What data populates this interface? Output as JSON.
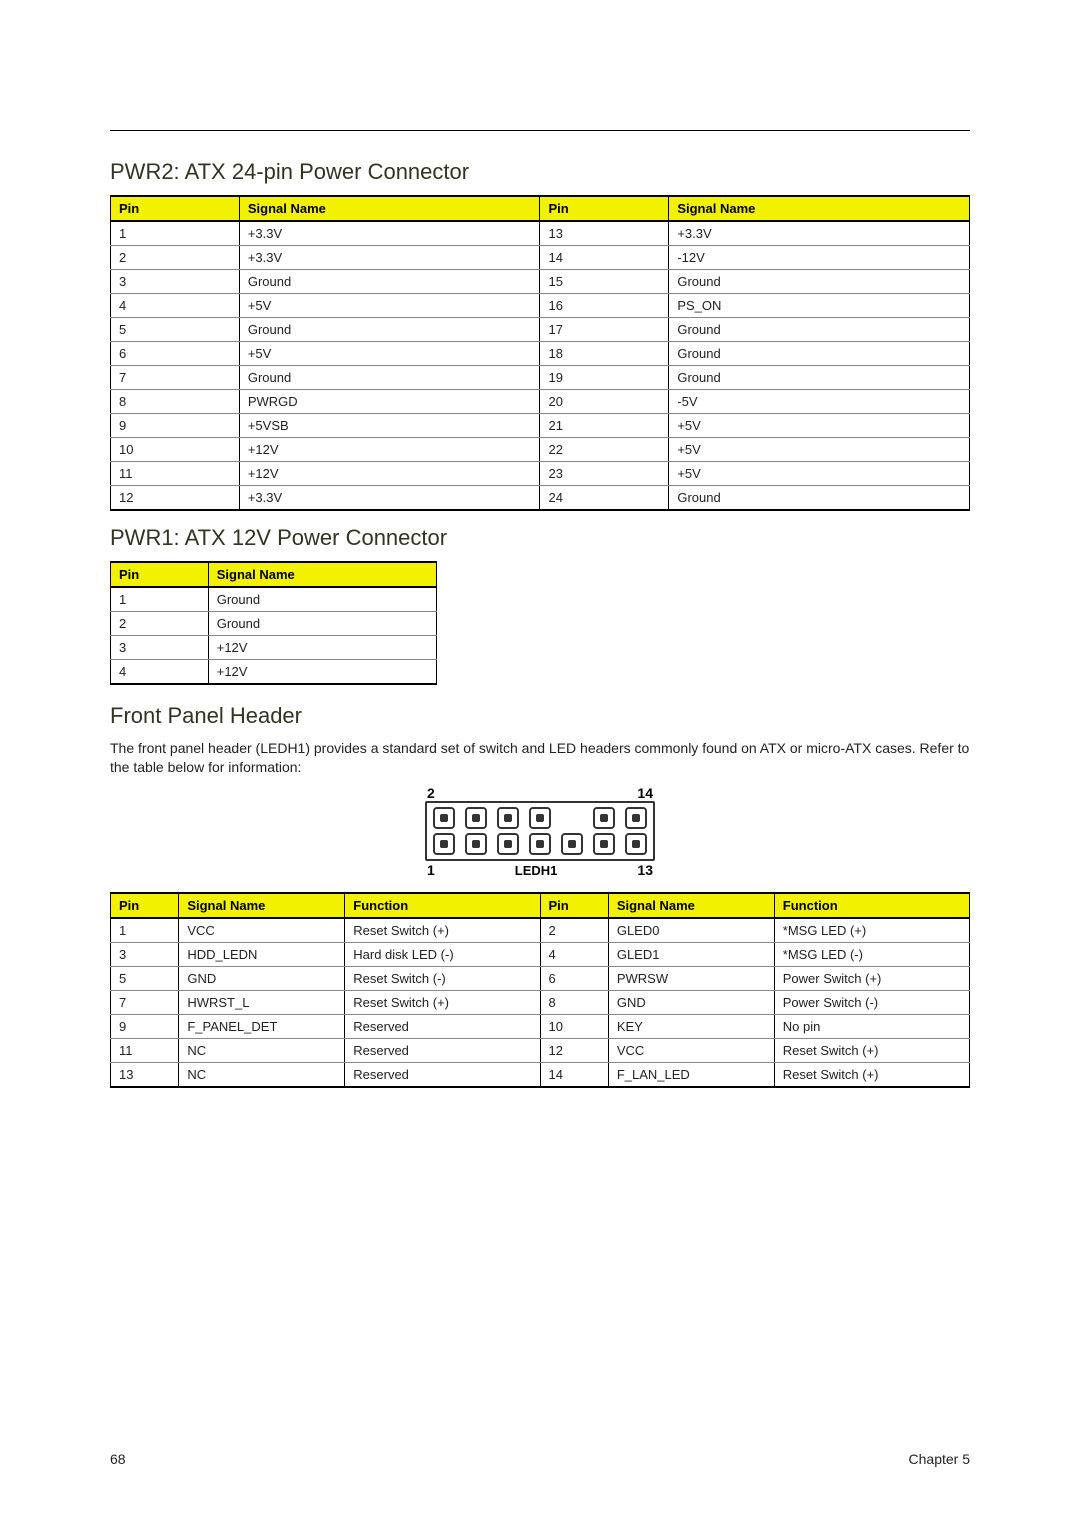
{
  "colors": {
    "header_bg": "#f2f200",
    "border": "#000000",
    "row_border": "#888888",
    "text": "#222222"
  },
  "sections": {
    "pwr2": {
      "title": "PWR2: ATX 24-pin Power Connector",
      "columns": [
        "Pin",
        "Signal Name",
        "Pin",
        "Signal Name"
      ],
      "rows": [
        [
          "1",
          "+3.3V",
          "13",
          "+3.3V"
        ],
        [
          "2",
          "+3.3V",
          "14",
          "-12V"
        ],
        [
          "3",
          "Ground",
          "15",
          "Ground"
        ],
        [
          "4",
          "+5V",
          "16",
          "PS_ON"
        ],
        [
          "5",
          "Ground",
          "17",
          "Ground"
        ],
        [
          "6",
          "+5V",
          "18",
          "Ground"
        ],
        [
          "7",
          "Ground",
          "19",
          "Ground"
        ],
        [
          "8",
          "PWRGD",
          "20",
          "-5V"
        ],
        [
          "9",
          "+5VSB",
          "21",
          "+5V"
        ],
        [
          "10",
          "+12V",
          "22",
          "+5V"
        ],
        [
          "11",
          "+12V",
          "23",
          "+5V"
        ],
        [
          "12",
          "+3.3V",
          "24",
          "Ground"
        ]
      ]
    },
    "pwr1": {
      "title": "PWR1: ATX 12V Power Connector",
      "columns": [
        "Pin",
        "Signal Name"
      ],
      "rows": [
        [
          "1",
          "Ground"
        ],
        [
          "2",
          "Ground"
        ],
        [
          "3",
          "+12V"
        ],
        [
          "4",
          "+12V"
        ]
      ]
    },
    "fph": {
      "title": "Front Panel Header",
      "intro": "The front panel header (LEDH1) provides a standard set of switch and LED headers commonly found on ATX or micro-ATX cases. Refer to the table below for information:",
      "diagram": {
        "top_left": "2",
        "top_right": "14",
        "bot_left": "1",
        "bot_right": "13",
        "caption": "LEDH1",
        "top_row_pins": [
          true,
          true,
          true,
          true,
          false,
          true,
          true
        ],
        "bot_row_pins": [
          true,
          true,
          true,
          true,
          true,
          true,
          true
        ]
      },
      "columns": [
        "Pin",
        "Signal Name",
        "Function",
        "Pin",
        "Signal Name",
        "Function"
      ],
      "rows": [
        [
          "1",
          "VCC",
          "Reset Switch (+)",
          "2",
          "GLED0",
          "*MSG LED (+)"
        ],
        [
          "3",
          "HDD_LEDN",
          "Hard disk LED (-)",
          "4",
          "GLED1",
          "*MSG LED (-)"
        ],
        [
          "5",
          "GND",
          "Reset Switch (-)",
          "6",
          "PWRSW",
          "Power Switch (+)"
        ],
        [
          "7",
          "HWRST_L",
          "Reset Switch (+)",
          "8",
          "GND",
          "Power Switch (-)"
        ],
        [
          "9",
          "F_PANEL_DET",
          "Reserved",
          "10",
          "KEY",
          "No pin"
        ],
        [
          "11",
          "NC",
          "Reserved",
          "12",
          "VCC",
          "Reset Switch (+)"
        ],
        [
          "13",
          "NC",
          "Reserved",
          "14",
          "F_LAN_LED",
          "Reset Switch (+)"
        ]
      ]
    }
  },
  "footer": {
    "page": "68",
    "chapter": "Chapter 5"
  }
}
